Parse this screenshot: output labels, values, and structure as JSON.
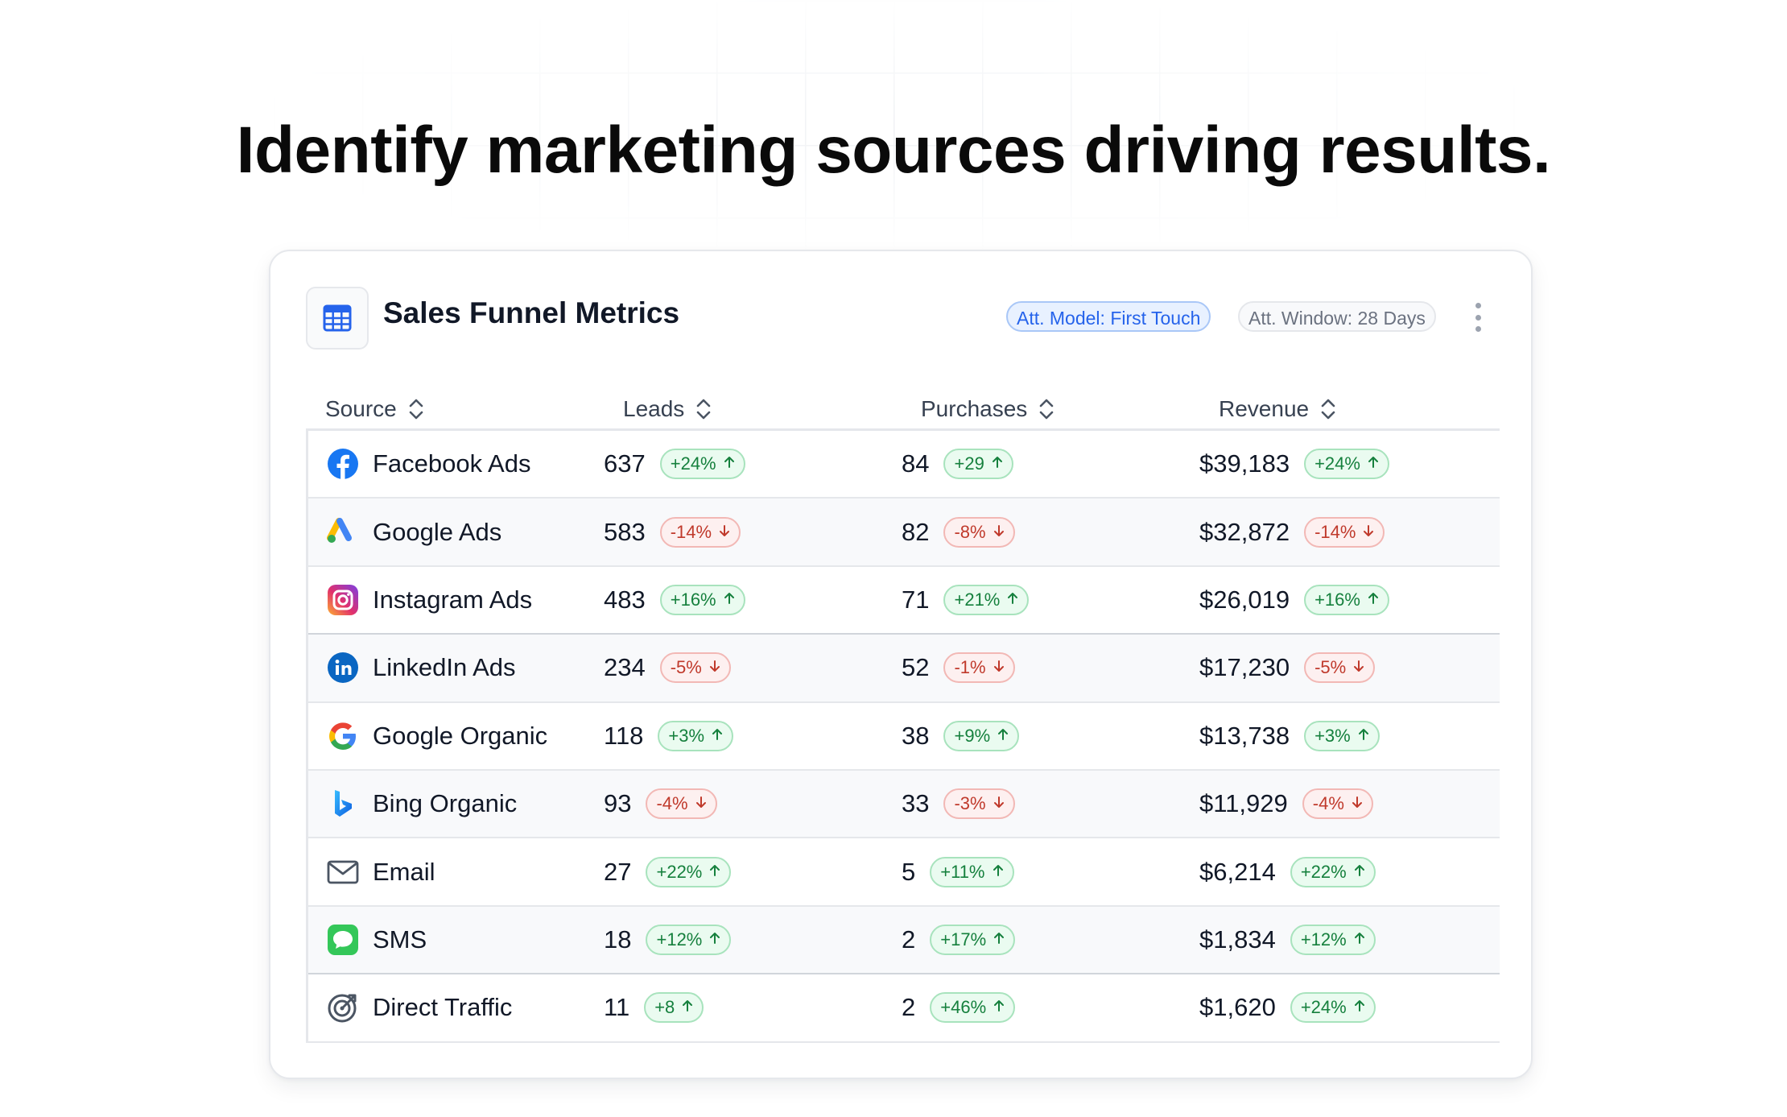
{
  "headline": "Identify marketing sources driving results.",
  "card": {
    "title": "Sales Funnel Metrics",
    "icon": "table-icon",
    "att_model": "Att. Model: First Touch",
    "att_window": "Att. Window: 28 Days",
    "menu_icon": "kebab-menu-icon"
  },
  "columns": {
    "source": "Source",
    "leads": "Leads",
    "purchases": "Purchases",
    "revenue": "Revenue",
    "sort_icon": "sort-icon"
  },
  "colors": {
    "accent_blue": "#2563eb",
    "positive": "#15803d",
    "negative": "#c0392b"
  },
  "rows": [
    {
      "source": "Facebook Ads",
      "icon": "facebook-icon",
      "leads": "637",
      "leads_change": "+24%",
      "leads_dir": "up",
      "purchases": "84",
      "purchases_change": "+29",
      "purchases_dir": "up",
      "revenue": "$39,183",
      "revenue_change": "+24%",
      "revenue_dir": "up"
    },
    {
      "source": "Google Ads",
      "icon": "google-ads-icon",
      "leads": "583",
      "leads_change": "-14%",
      "leads_dir": "down",
      "purchases": "82",
      "purchases_change": "-8%",
      "purchases_dir": "down",
      "revenue": "$32,872",
      "revenue_change": "-14%",
      "revenue_dir": "down"
    },
    {
      "source": "Instagram Ads",
      "icon": "instagram-icon",
      "leads": "483",
      "leads_change": "+16%",
      "leads_dir": "up",
      "purchases": "71",
      "purchases_change": "+21%",
      "purchases_dir": "up",
      "revenue": "$26,019",
      "revenue_change": "+16%",
      "revenue_dir": "up"
    },
    {
      "source": "LinkedIn Ads",
      "icon": "linkedin-icon",
      "leads": "234",
      "leads_change": "-5%",
      "leads_dir": "down",
      "purchases": "52",
      "purchases_change": "-1%",
      "purchases_dir": "down",
      "revenue": "$17,230",
      "revenue_change": "-5%",
      "revenue_dir": "down"
    },
    {
      "source": "Google Organic",
      "icon": "google-icon",
      "leads": "118",
      "leads_change": "+3%",
      "leads_dir": "up",
      "purchases": "38",
      "purchases_change": "+9%",
      "purchases_dir": "up",
      "revenue": "$13,738",
      "revenue_change": "+3%",
      "revenue_dir": "up"
    },
    {
      "source": "Bing Organic",
      "icon": "bing-icon",
      "leads": "93",
      "leads_change": "-4%",
      "leads_dir": "down",
      "purchases": "33",
      "purchases_change": "-3%",
      "purchases_dir": "down",
      "revenue": "$11,929",
      "revenue_change": "-4%",
      "revenue_dir": "down"
    },
    {
      "source": "Email",
      "icon": "email-icon",
      "leads": "27",
      "leads_change": "+22%",
      "leads_dir": "up",
      "purchases": "5",
      "purchases_change": "+11%",
      "purchases_dir": "up",
      "revenue": "$6,214",
      "revenue_change": "+22%",
      "revenue_dir": "up"
    },
    {
      "source": "SMS",
      "icon": "sms-icon",
      "leads": "18",
      "leads_change": "+12%",
      "leads_dir": "up",
      "purchases": "2",
      "purchases_change": "+17%",
      "purchases_dir": "up",
      "revenue": "$1,834",
      "revenue_change": "+12%",
      "revenue_dir": "up"
    },
    {
      "source": "Direct Traffic",
      "icon": "direct-traffic-icon",
      "leads": "11",
      "leads_change": "+8",
      "leads_dir": "up",
      "purchases": "2",
      "purchases_change": "+46%",
      "purchases_dir": "up",
      "revenue": "$1,620",
      "revenue_change": "+24%",
      "revenue_dir": "up"
    }
  ]
}
